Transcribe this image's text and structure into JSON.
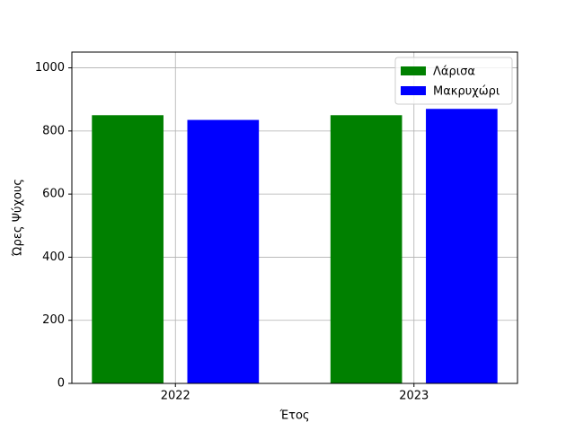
{
  "chart_data": {
    "type": "bar",
    "xlabel": "Έτος",
    "ylabel": "Ώρες Ψύχους",
    "x": [
      2022,
      2023
    ],
    "series": [
      {
        "name": "Λάρισα",
        "color": "#008000",
        "values": [
          850,
          850
        ]
      },
      {
        "name": "Μακρυχώρι",
        "color": "#0000ff",
        "values": [
          835,
          870
        ]
      }
    ],
    "xlim": [
      2021.566,
      2023.434
    ],
    "xticks": [
      2022,
      2023
    ],
    "ylim": [
      0,
      1050
    ],
    "yticks": [
      0,
      200,
      400,
      600,
      800,
      1000
    ],
    "grid": true,
    "legend": "upper right"
  }
}
